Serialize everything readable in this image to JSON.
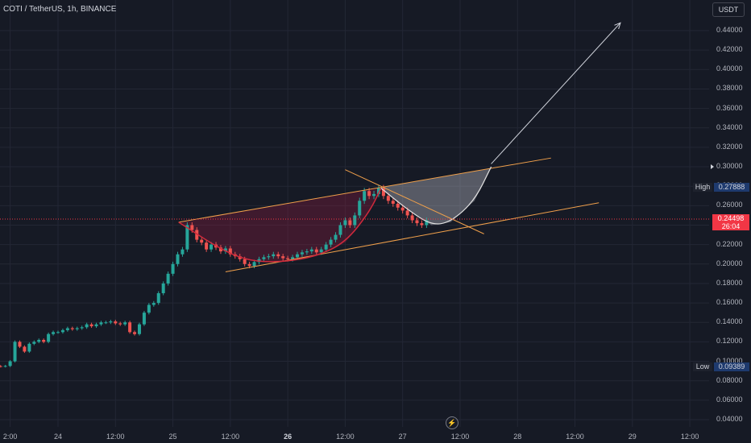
{
  "header": {
    "title": "COTI / TetherUS, 1h, BINANCE",
    "currency_button": "USDT"
  },
  "y_axis": {
    "ticks": [
      "0.44000",
      "0.42000",
      "0.40000",
      "0.38000",
      "0.36000",
      "0.34000",
      "0.32000",
      "0.30000",
      "0.28000",
      "0.26000",
      "0.24000",
      "0.22000",
      "0.20000",
      "0.18000",
      "0.16000",
      "0.14000",
      "0.12000",
      "0.10000",
      "0.08000",
      "0.06000",
      "0.04000"
    ],
    "high_label": "High",
    "high_value": "0.27888",
    "low_label": "Low",
    "low_value": "0.09389",
    "last_price": "0.24498",
    "countdown": "26:04"
  },
  "x_axis": {
    "ticks": [
      {
        "label": "2:00",
        "hour": -10,
        "bold": false
      },
      {
        "label": "24",
        "hour": 0,
        "bold": false
      },
      {
        "label": "12:00",
        "hour": 12,
        "bold": false
      },
      {
        "label": "25",
        "hour": 24,
        "bold": false
      },
      {
        "label": "12:00",
        "hour": 36,
        "bold": false
      },
      {
        "label": "26",
        "hour": 48,
        "bold": true
      },
      {
        "label": "12:00",
        "hour": 60,
        "bold": false
      },
      {
        "label": "27",
        "hour": 72,
        "bold": false
      },
      {
        "label": "12:00",
        "hour": 84,
        "bold": false
      },
      {
        "label": "28",
        "hour": 96,
        "bold": false
      },
      {
        "label": "12:00",
        "hour": 108,
        "bold": false
      },
      {
        "label": "29",
        "hour": 120,
        "bold": false
      },
      {
        "label": "12:00",
        "hour": 132,
        "bold": false
      }
    ]
  },
  "colors": {
    "up": "#26a69a",
    "down": "#ef5350",
    "trend": "#f0a04b",
    "cup": "#d02a3c",
    "arrow": "#d1d4dc",
    "grid": "#232735"
  },
  "chart_data": {
    "type": "candlestick",
    "x_unit": "hours since 24 00:00",
    "ylim": [
      0.03,
      0.455
    ],
    "candles_hourly_close": [
      0.0945,
      0.095,
      0.0948,
      0.0952,
      0.1,
      0.12,
      0.115,
      0.11,
      0.118,
      0.12,
      0.122,
      0.12,
      0.128,
      0.13,
      0.13,
      0.132,
      0.134,
      0.133,
      0.134,
      0.135,
      0.138,
      0.136,
      0.138,
      0.14,
      0.14,
      0.141,
      0.139,
      0.138,
      0.14,
      0.13,
      0.128,
      0.138,
      0.15,
      0.158,
      0.16,
      0.17,
      0.18,
      0.19,
      0.2,
      0.21,
      0.215,
      0.24,
      0.235,
      0.225,
      0.222,
      0.215,
      0.22,
      0.217,
      0.213,
      0.216,
      0.21,
      0.208,
      0.205,
      0.2,
      0.198,
      0.202,
      0.205,
      0.207,
      0.208,
      0.21,
      0.208,
      0.206,
      0.205,
      0.207,
      0.21,
      0.212,
      0.213,
      0.215,
      0.212,
      0.215,
      0.22,
      0.225,
      0.23,
      0.24,
      0.245,
      0.24,
      0.25,
      0.265,
      0.275,
      0.27,
      0.272,
      0.278,
      0.27,
      0.265,
      0.262,
      0.258,
      0.255,
      0.25,
      0.245,
      0.242,
      0.24,
      0.245
    ],
    "first_candle_hour": -14,
    "pattern": {
      "channel_upper": [
        [
          25.2,
          0.243
        ],
        [
          103,
          0.309
        ]
      ],
      "channel_lower": [
        [
          35,
          0.192
        ],
        [
          113,
          0.263
        ]
      ],
      "cup_points": [
        [
          25.2,
          0.243
        ],
        [
          34,
          0.215
        ],
        [
          40,
          0.203
        ],
        [
          47,
          0.202
        ],
        [
          54,
          0.208
        ],
        [
          60,
          0.222
        ],
        [
          65,
          0.253
        ],
        [
          67.5,
          0.278
        ]
      ],
      "handle_points": [
        [
          67.5,
          0.278
        ],
        [
          73,
          0.256
        ],
        [
          78,
          0.24
        ],
        [
          82,
          0.243
        ],
        [
          87,
          0.265
        ],
        [
          90.5,
          0.3
        ]
      ],
      "handle_top_line": [
        [
          60,
          0.297
        ],
        [
          89,
          0.231
        ]
      ],
      "arrow": [
        [
          90.5,
          0.303
        ],
        [
          117.5,
          0.448
        ]
      ]
    }
  }
}
